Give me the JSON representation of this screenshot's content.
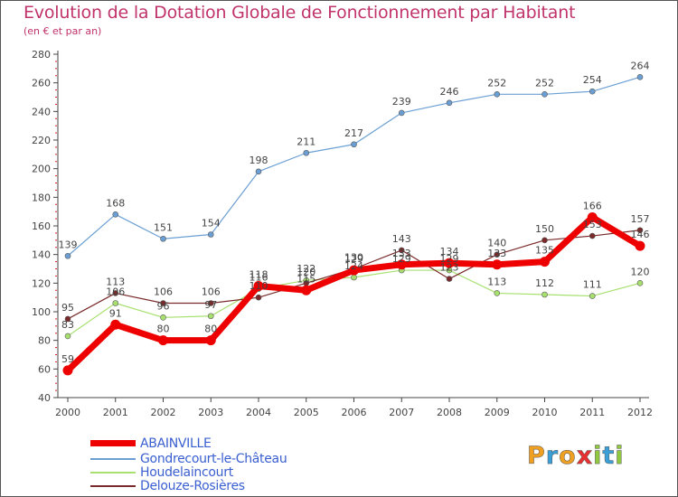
{
  "header": {
    "title": "Evolution de la Dotation Globale de Fonctionnement par Habitant",
    "subtitle": "(en € et par an)"
  },
  "chart_data": {
    "type": "line",
    "title": "Evolution de la Dotation Globale de Fonctionnement par Habitant",
    "subtitle": "(en € et par an)",
    "xlabel": "",
    "ylabel": "",
    "categories": [
      "2000",
      "2001",
      "2002",
      "2003",
      "2004",
      "2005",
      "2006",
      "2007",
      "2008",
      "2009",
      "2010",
      "2011",
      "2012"
    ],
    "ylim": [
      40,
      280
    ],
    "yticks": [
      40,
      60,
      80,
      100,
      120,
      140,
      160,
      180,
      200,
      220,
      240,
      260,
      280
    ],
    "grid": false,
    "legend_position": "bottom-left",
    "series": [
      {
        "name": "ABAINVILLE",
        "color": "#ee0000",
        "values": [
          59,
          91,
          80,
          80,
          118,
          115,
          129,
          133,
          134,
          133,
          135,
          166,
          146
        ]
      },
      {
        "name": "Gondrecourt-le-Château",
        "color": "#6b9fd4",
        "values": [
          139,
          168,
          151,
          154,
          198,
          211,
          217,
          239,
          246,
          252,
          252,
          254,
          264
        ]
      },
      {
        "name": "Houdelaincourt",
        "color": "#a8e070",
        "values": [
          83,
          106,
          96,
          97,
          116,
          122,
          124,
          129,
          129,
          113,
          112,
          111,
          120
        ]
      },
      {
        "name": "Delouze-Rosières",
        "color": "#7a2a2a",
        "values": [
          95,
          113,
          106,
          106,
          110,
          120,
          130,
          143,
          123,
          140,
          150,
          153,
          157
        ]
      }
    ],
    "value_labels": [
      {
        "series": "ABAINVILLE",
        "labels": [
          "59",
          "91",
          "80",
          "80",
          "118",
          "115",
          "129",
          "133",
          "134",
          "133",
          "135",
          "166",
          "146"
        ]
      },
      {
        "series": "Gondrecourt-le-Château",
        "labels": [
          "139",
          "168",
          "151",
          "154",
          "198",
          "211",
          "217",
          "239",
          "246",
          "252",
          "252",
          "254",
          "264"
        ]
      },
      {
        "series": "Houdelaincourt",
        "labels": [
          "83",
          "106",
          "96",
          "97",
          "116",
          "122",
          "124",
          "129",
          "129",
          "113",
          "112",
          "111",
          "120"
        ]
      },
      {
        "series": "Delouze-Rosières",
        "labels": [
          "95",
          "113",
          "106",
          "106",
          "110",
          "120",
          "130",
          "143",
          "123",
          "140",
          "150",
          "153",
          "157"
        ]
      }
    ]
  },
  "legend": {
    "items": [
      "ABAINVILLE",
      "Gondrecourt-le-Château",
      "Houdelaincourt",
      "Delouze-Rosières"
    ]
  },
  "logo": {
    "letters": [
      "P",
      "r",
      "o",
      "x",
      "i",
      "t",
      "i"
    ],
    "colors": [
      "#f0a020",
      "#3ca0d8",
      "#f0a020",
      "#e83030",
      "#90c840",
      "#3ca0d8",
      "#90c840"
    ]
  }
}
